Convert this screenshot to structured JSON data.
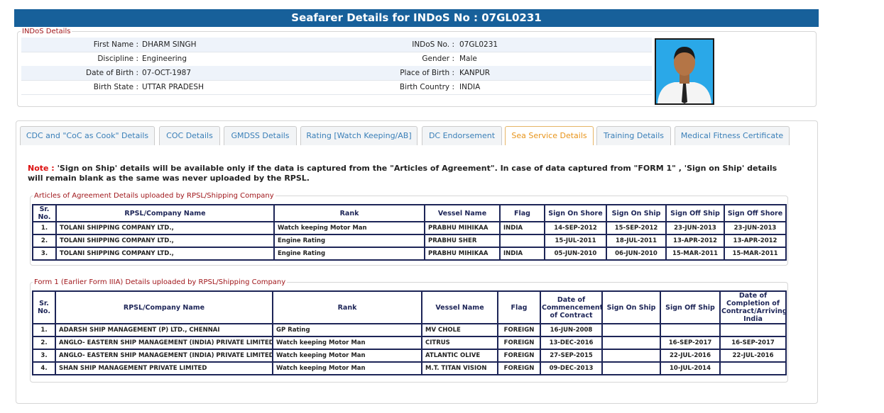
{
  "header": {
    "title": "Seafarer Details for INDoS No : 07GL0231"
  },
  "indos_details": {
    "legend": "INDoS Details",
    "fields": [
      [
        "First Name :",
        "DHARM SINGH",
        "INDoS No. :",
        "07GL0231"
      ],
      [
        "Discipline :",
        "Engineering",
        "Gender :",
        "Male"
      ],
      [
        "Date of Birth :",
        "07-OCT-1987",
        "Place of Birth :",
        "KANPUR"
      ],
      [
        "Birth State :",
        "UTTAR PRADESH",
        "Birth Country :",
        "INDIA"
      ]
    ]
  },
  "tabs": [
    "CDC and \"CoC as Cook\" Details",
    "COC Details",
    "GMDSS Details",
    "Rating [Watch Keeping/AB]",
    "DC Endorsement",
    "Sea Service Details",
    "Training Details",
    "Medical Fitness Certificate"
  ],
  "active_tab": 5,
  "note": {
    "label": "Note :",
    "text": "'Sign on Ship' details will be available only if the data is captured from the \"Articles of Agreement\". In case of data captured from \"FORM 1\" , 'Sign on Ship' details will remain blank as the same was never uploaded by the RPSL."
  },
  "tables": [
    {
      "legend": "Articles of Agreement Details uploaded by RPSL/Shipping Company",
      "columns": [
        "Sr. No.",
        "RPSL/Company Name",
        "Rank",
        "Vessel Name",
        "Flag",
        "Sign On Shore",
        "Sign On Ship",
        "Sign Off Ship",
        "Sign Off Shore"
      ],
      "rows": [
        [
          "1.",
          "TOLANI SHIPPING COMPANY LTD.,",
          "Watch keeping Motor Man",
          "PRABHU MIHIKAA",
          "INDIA",
          "14-SEP-2012",
          "15-SEP-2012",
          "23-JUN-2013",
          "23-JUN-2013"
        ],
        [
          "2.",
          "TOLANI SHIPPING COMPANY LTD.,",
          "Engine Rating",
          "PRABHU SHER",
          null,
          "15-JUL-2011",
          "18-JUL-2011",
          "13-APR-2012",
          "13-APR-2012"
        ],
        [
          "3.",
          "TOLANI SHIPPING COMPANY LTD.,",
          "Engine Rating",
          "PRABHU MIHIKAA",
          "INDIA",
          "05-JUN-2010",
          "06-JUN-2010",
          "15-MAR-2011",
          "15-MAR-2011"
        ]
      ]
    },
    {
      "legend": "Form 1 (Earlier Form IIIA) Details uploaded by RPSL/Shipping Company",
      "columns": [
        "Sr. No.",
        "RPSL/Company Name",
        "Rank",
        "Vessel Name",
        "Flag",
        "Date of Commencement of Contract",
        "Sign On Ship",
        "Sign Off Ship",
        "Date of Completion of Contract/Arriving India"
      ],
      "rows": [
        [
          "1.",
          "ADARSH SHIP MANAGEMENT (P) LTD., CHENNAI",
          "GP Rating",
          "MV CHOLE",
          "FOREIGN",
          "16-JUN-2008",
          null,
          null,
          null
        ],
        [
          "2.",
          "ANGLO- EASTERN SHIP MANAGEMENT (INDIA) PRIVATE LIMITED",
          "Watch keeping Motor Man",
          "CITRUS",
          "FOREIGN",
          "13-DEC-2016",
          null,
          "16-SEP-2017",
          "16-SEP-2017"
        ],
        [
          "3.",
          "ANGLO- EASTERN SHIP MANAGEMENT (INDIA) PRIVATE LIMITED",
          "Watch keeping Motor Man",
          "ATLANTIC OLIVE",
          "FOREIGN",
          "27-SEP-2015",
          null,
          "22-JUL-2016",
          "22-JUL-2016"
        ],
        [
          "4.",
          "SHAN SHIP MANAGEMENT PRIVATE LIMITED",
          "Watch keeping Motor Man",
          "M.T. TITAN VISION",
          "FOREIGN",
          "09-DEC-2013",
          null,
          "10-JUL-2014",
          null
        ]
      ]
    }
  ]
}
